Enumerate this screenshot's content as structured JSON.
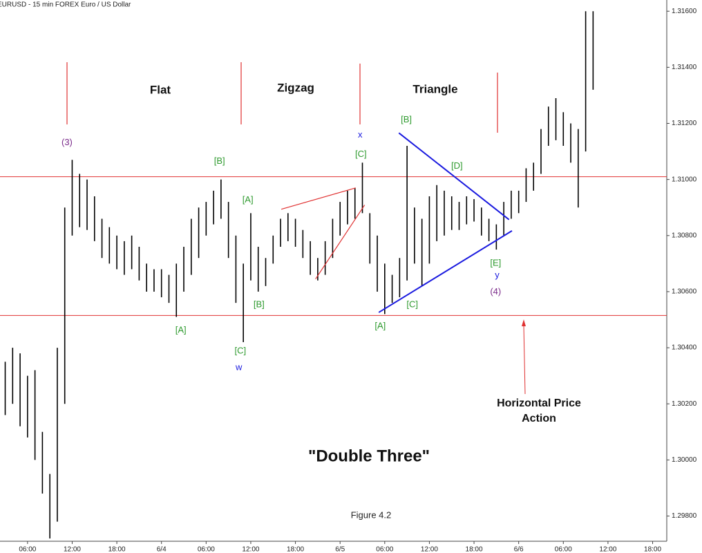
{
  "chart_data": {
    "type": "ohlc",
    "title": "EURUSD - 15 min  FOREX  Euro / US Dollar",
    "color": "#000000",
    "xlim": [
      2.3,
      91.9
    ],
    "ylim": [
      1.2971,
      1.3164
    ],
    "xticks": [
      {
        "value": 6,
        "label": "06:00"
      },
      {
        "value": 12,
        "label": "12:00"
      },
      {
        "value": 18,
        "label": "18:00"
      },
      {
        "value": 24,
        "label": "6/4"
      },
      {
        "value": 30,
        "label": "06:00"
      },
      {
        "value": 36,
        "label": "12:00"
      },
      {
        "value": 42,
        "label": "18:00"
      },
      {
        "value": 48,
        "label": "6/5"
      },
      {
        "value": 54,
        "label": "06:00"
      },
      {
        "value": 60,
        "label": "12:00"
      },
      {
        "value": 66,
        "label": "18:00"
      },
      {
        "value": 72,
        "label": "6/6"
      },
      {
        "value": 78,
        "label": "06:00"
      },
      {
        "value": 84,
        "label": "12:00"
      },
      {
        "value": 90,
        "label": "18:00"
      }
    ],
    "yticks": [
      {
        "value": 1.298,
        "label": "1.29800"
      },
      {
        "value": 1.3,
        "label": "1.30000"
      },
      {
        "value": 1.302,
        "label": "1.30200"
      },
      {
        "value": 1.304,
        "label": "1.30400"
      },
      {
        "value": 1.306,
        "label": "1.30600"
      },
      {
        "value": 1.308,
        "label": "1.30800"
      },
      {
        "value": 1.31,
        "label": "1.31000"
      },
      {
        "value": 1.312,
        "label": "1.31200"
      },
      {
        "value": 1.314,
        "label": "1.31400"
      },
      {
        "value": 1.316,
        "label": "1.31600"
      }
    ],
    "x": [
      3,
      4,
      5,
      6,
      7,
      8,
      9,
      10,
      11,
      12,
      13,
      14,
      15,
      16,
      17,
      18,
      19,
      20,
      21,
      22,
      23,
      24,
      25,
      26,
      27,
      28,
      29,
      30,
      31,
      32,
      33,
      34,
      35,
      36,
      37,
      38,
      39,
      40,
      41,
      42,
      43,
      44,
      45,
      46,
      47,
      48,
      49,
      50,
      51,
      52,
      53,
      54,
      55,
      56,
      57,
      58,
      59,
      60,
      61,
      62,
      63,
      64,
      65,
      66,
      67,
      68,
      69,
      70,
      71,
      72,
      73,
      74,
      75,
      76,
      77,
      78,
      79,
      80,
      81,
      82
    ],
    "high": [
      1.3035,
      1.304,
      1.3038,
      1.303,
      1.3032,
      1.301,
      1.2995,
      1.304,
      1.309,
      1.3107,
      1.3102,
      1.31,
      1.3094,
      1.3086,
      1.3083,
      1.308,
      1.3078,
      1.308,
      1.3076,
      1.307,
      1.3068,
      1.3068,
      1.3066,
      1.307,
      1.3076,
      1.3086,
      1.309,
      1.3092,
      1.3096,
      1.31,
      1.3092,
      1.308,
      1.307,
      1.3088,
      1.3076,
      1.3072,
      1.308,
      1.3086,
      1.3088,
      1.3086,
      1.3082,
      1.3078,
      1.3072,
      1.3078,
      1.3086,
      1.3092,
      1.3096,
      1.3097,
      1.3106,
      1.3088,
      1.308,
      1.307,
      1.3066,
      1.3072,
      1.3112,
      1.309,
      1.3086,
      1.3094,
      1.3098,
      1.3096,
      1.3094,
      1.3092,
      1.3094,
      1.3093,
      1.309,
      1.3086,
      1.3084,
      1.3092,
      1.3096,
      1.3096,
      1.3104,
      1.3106,
      1.3118,
      1.3126,
      1.3129,
      1.3124,
      1.312,
      1.3118,
      1.316,
      1.316
    ],
    "low": [
      1.3016,
      1.302,
      1.3012,
      1.3008,
      1.3,
      1.2988,
      1.2972,
      1.2978,
      1.302,
      1.308,
      1.3083,
      1.3082,
      1.3078,
      1.3072,
      1.307,
      1.3068,
      1.3066,
      1.3068,
      1.3064,
      1.306,
      1.306,
      1.3058,
      1.3056,
      1.3051,
      1.306,
      1.3066,
      1.3072,
      1.308,
      1.3084,
      1.3086,
      1.3072,
      1.3056,
      1.3042,
      1.3064,
      1.306,
      1.3062,
      1.307,
      1.3076,
      1.3078,
      1.3076,
      1.3072,
      1.3066,
      1.3064,
      1.3066,
      1.3072,
      1.308,
      1.3084,
      1.3086,
      1.3088,
      1.307,
      1.306,
      1.3052,
      1.3056,
      1.3058,
      1.3064,
      1.307,
      1.3062,
      1.307,
      1.3078,
      1.308,
      1.3082,
      1.3082,
      1.3084,
      1.3085,
      1.308,
      1.3078,
      1.3075,
      1.308,
      1.3086,
      1.3088,
      1.3092,
      1.3096,
      1.3102,
      1.3112,
      1.3114,
      1.3112,
      1.3106,
      1.309,
      1.311,
      1.3132
    ],
    "hlines": [
      {
        "value": 1.3101,
        "color": "#e03030"
      },
      {
        "value": 1.30515,
        "color": "#e03030"
      }
    ],
    "trendlines": [
      {
        "color": "#e03030",
        "points": [
          [
            40.1,
            1.30894
          ],
          [
            50.1,
            1.3097
          ]
        ]
      },
      {
        "color": "#e03030",
        "points": [
          [
            44.7,
            1.30645
          ],
          [
            51.3,
            1.30909
          ]
        ]
      },
      {
        "color": "#1a1adf",
        "points": [
          [
            55.9,
            1.31166
          ],
          [
            70.7,
            1.30857
          ]
        ]
      },
      {
        "color": "#1a1adf",
        "points": [
          [
            53.2,
            1.30526
          ],
          [
            71.1,
            1.30817
          ]
        ]
      }
    ],
    "annotations": [
      {
        "text": "(3)",
        "x": 11.3,
        "y": 1.31131,
        "color": "#7a2a8a"
      },
      {
        "text": "[B]",
        "x": 31.8,
        "y": 1.31064,
        "color": "#2e9a2e"
      },
      {
        "text": "[A]",
        "x": 26.6,
        "y": 1.30462,
        "color": "#2e9a2e"
      },
      {
        "text": "[C]",
        "x": 34.6,
        "y": 1.30388,
        "color": "#2e9a2e"
      },
      {
        "text": "w",
        "x": 34.4,
        "y": 1.30328,
        "color": "#1a1adf"
      },
      {
        "text": "[A]",
        "x": 35.6,
        "y": 1.30926,
        "color": "#2e9a2e"
      },
      {
        "text": "[B]",
        "x": 37.1,
        "y": 1.30553,
        "color": "#2e9a2e"
      },
      {
        "text": "[C]",
        "x": 50.8,
        "y": 1.31089,
        "color": "#2e9a2e"
      },
      {
        "text": "x",
        "x": 50.7,
        "y": 1.31158,
        "color": "#1a1adf"
      },
      {
        "text": "[B]",
        "x": 56.9,
        "y": 1.31212,
        "color": "#2e9a2e"
      },
      {
        "text": "[A]",
        "x": 53.4,
        "y": 1.30477,
        "color": "#2e9a2e"
      },
      {
        "text": "[C]",
        "x": 57.7,
        "y": 1.30553,
        "color": "#2e9a2e"
      },
      {
        "text": "[D]",
        "x": 63.7,
        "y": 1.31047,
        "color": "#2e9a2e"
      },
      {
        "text": "[E]",
        "x": 68.9,
        "y": 1.30701,
        "color": "#2e9a2e"
      },
      {
        "text": "y",
        "x": 69.1,
        "y": 1.30657,
        "color": "#1a1adf"
      },
      {
        "text": "(4)",
        "x": 68.9,
        "y": 1.30598,
        "color": "#7a2a8a"
      }
    ],
    "sections": [
      "Flat",
      "Zigzag",
      "Triangle"
    ],
    "pattern_title": "\"Double Three\"",
    "note": [
      "Horizontal Price",
      "Action"
    ],
    "caption": "Figure 4.2"
  }
}
